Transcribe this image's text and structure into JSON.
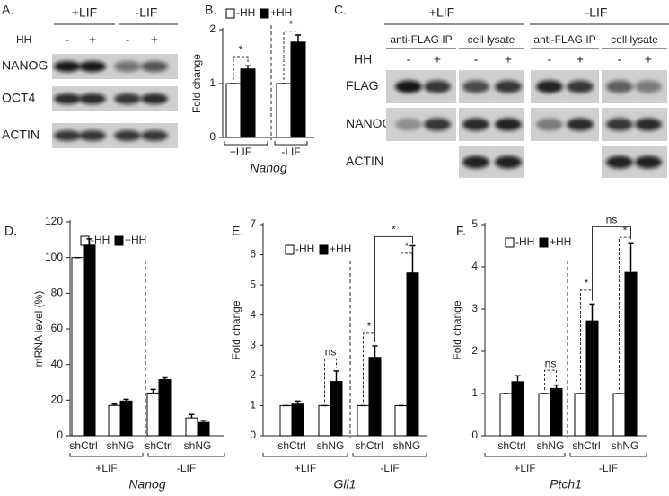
{
  "blot_a": {
    "panel_label": "A.",
    "conditions": [
      "+LIF",
      "-LIF"
    ],
    "treatment_label": "HH",
    "treatment_signs": [
      "-",
      "+",
      "-",
      "+"
    ],
    "rows": [
      "NANOG",
      "OCT4",
      "ACTIN"
    ]
  },
  "blot_c": {
    "panel_label": "C.",
    "conditions": [
      "+LIF",
      "-LIF"
    ],
    "fractions": [
      "anti-FLAG IP",
      "cell lysate",
      "anti-FLAG IP",
      "cell lysate"
    ],
    "treatment_label": "HH",
    "treatment_signs": [
      "-",
      "+",
      "-",
      "+",
      "-",
      "+",
      "-",
      "+"
    ],
    "rows": [
      "FLAG",
      "NANOG",
      "ACTIN"
    ]
  },
  "chart_data": [
    {
      "type": "bar",
      "panel_label": "B.",
      "ylabel": "Fold change",
      "xlabel": "Nanog",
      "categories": [
        "+LIF",
        "-LIF"
      ],
      "series": [
        {
          "name": "-HH",
          "color": "#ffffff",
          "values": [
            1,
            1
          ],
          "errors": [
            0,
            0
          ]
        },
        {
          "name": "+HH",
          "color": "#000000",
          "values": [
            1.27,
            1.77
          ],
          "errors": [
            0.06,
            0.13
          ]
        }
      ],
      "ylim": [
        0,
        2
      ],
      "yticks": [
        0,
        1,
        2
      ],
      "annotations": [
        "*",
        "*"
      ]
    },
    {
      "type": "bar",
      "panel_label": "D.",
      "ylabel": "mRNA level (%)",
      "xlabel": "Nanog",
      "categories": [
        "shCtrl",
        "shNG",
        "shCtrl",
        "shNG"
      ],
      "groups": [
        "+LIF",
        "-LIF"
      ],
      "series": [
        {
          "name": "-HH",
          "color": "#ffffff",
          "values": [
            100,
            17,
            24,
            10
          ],
          "errors": [
            0,
            0.8,
            2,
            2
          ]
        },
        {
          "name": "+HH",
          "color": "#000000",
          "values": [
            107,
            19.5,
            31.5,
            7.5
          ],
          "errors": [
            3.5,
            1,
            1,
            1
          ]
        }
      ],
      "ylim": [
        0,
        120
      ],
      "yticks": [
        0,
        20,
        40,
        60,
        80,
        100,
        120
      ],
      "annotations": []
    },
    {
      "type": "bar",
      "panel_label": "E.",
      "ylabel": "Fold change",
      "xlabel": "Gli1",
      "categories": [
        "shCtrl",
        "shNG",
        "shCtrl",
        "shNG"
      ],
      "groups": [
        "+LIF",
        "-LIF"
      ],
      "series": [
        {
          "name": "-HH",
          "color": "#ffffff",
          "values": [
            1,
            1,
            1,
            1
          ],
          "errors": [
            0,
            0,
            0,
            0
          ]
        },
        {
          "name": "+HH",
          "color": "#000000",
          "values": [
            1.05,
            1.8,
            2.6,
            5.4
          ],
          "errors": [
            0.1,
            0.35,
            0.38,
            0.9
          ]
        }
      ],
      "ylim": [
        0,
        7
      ],
      "yticks": [
        0,
        1,
        2,
        3,
        4,
        5,
        6,
        7
      ],
      "annotations": [
        "ns",
        "*",
        "*",
        "*"
      ]
    },
    {
      "type": "bar",
      "panel_label": "F.",
      "ylabel": "Fold change",
      "xlabel": "Ptch1",
      "categories": [
        "shCtrl",
        "shNG",
        "shCtrl",
        "shNG"
      ],
      "groups": [
        "+LIF",
        "-LIF"
      ],
      "series": [
        {
          "name": "-HH",
          "color": "#ffffff",
          "values": [
            1,
            1,
            1,
            1
          ],
          "errors": [
            0,
            0,
            0,
            0
          ]
        },
        {
          "name": "+HH",
          "color": "#000000",
          "values": [
            1.28,
            1.12,
            2.72,
            3.87
          ],
          "errors": [
            0.14,
            0.08,
            0.4,
            0.7
          ]
        }
      ],
      "ylim": [
        0,
        5
      ],
      "yticks": [
        0,
        1,
        2,
        3,
        4,
        5
      ],
      "annotations": [
        "ns",
        "*",
        "*",
        "ns"
      ]
    }
  ]
}
